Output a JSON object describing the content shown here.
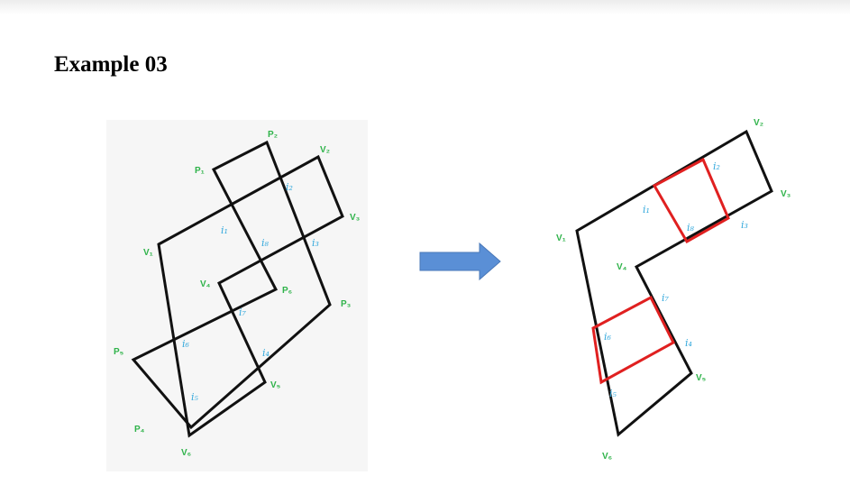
{
  "page": {
    "title": "Example 03"
  },
  "arrow": {
    "color": "#5a8fd6"
  },
  "left_figure": {
    "vertex_labels": {
      "P1": "P₁",
      "P2": "P₂",
      "P3": "P₃",
      "P4": "P₄",
      "P5": "P₅",
      "P6": "P₆",
      "V1": "V₁",
      "V2": "V₂",
      "V3": "V₃",
      "V4": "V₄",
      "V5": "V₅",
      "V6": "V₆"
    },
    "intersection_labels": {
      "i1": "i₁",
      "i2": "i₂",
      "i3": "i₃",
      "i4": "i₄",
      "i5": "i₅",
      "i6": "i₆",
      "i7": "i₇",
      "i8": "i₈"
    }
  },
  "right_figure": {
    "vertex_labels": {
      "V1": "V₁",
      "V2": "V₂",
      "V3": "V₃",
      "V4": "V₄",
      "V5": "V₅",
      "V6": "V₆"
    },
    "intersection_labels": {
      "i1": "i₁",
      "i2": "i₂",
      "i3": "i₃",
      "i4": "i₄",
      "i5": "i₅",
      "i6": "i₆",
      "i7": "i₇",
      "i8": "i₈"
    },
    "highlight_color": "#e02020"
  }
}
